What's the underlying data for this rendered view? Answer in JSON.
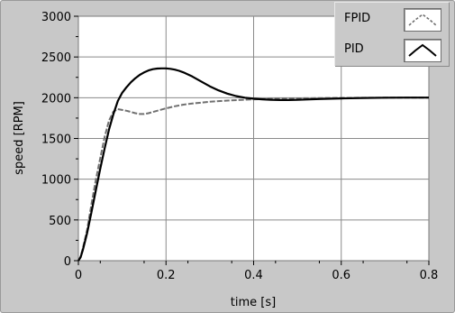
{
  "chart_data": {
    "type": "line",
    "xlabel": "time [s]",
    "ylabel": "speed [RPM]",
    "xlim": [
      0,
      0.8
    ],
    "ylim": [
      0,
      3000
    ],
    "xticks": [
      "0",
      "0.2",
      "0.4",
      "0.6",
      "0.8"
    ],
    "yticks": [
      "0",
      "500",
      "1000",
      "1500",
      "2000",
      "2500",
      "3000"
    ],
    "grid": true,
    "legend_position": "top-right",
    "series": [
      {
        "name": "FPID",
        "color": "#707070",
        "line_style": "dashed",
        "x": [
          0,
          0.005,
          0.01,
          0.02,
          0.03,
          0.04,
          0.05,
          0.06,
          0.07,
          0.08,
          0.09,
          0.1,
          0.11,
          0.12,
          0.13,
          0.14,
          0.15,
          0.16,
          0.18,
          0.2,
          0.22,
          0.24,
          0.26,
          0.28,
          0.3,
          0.32,
          0.35,
          0.4,
          0.45,
          0.5,
          0.6,
          0.7,
          0.8
        ],
        "y": [
          0,
          50,
          150,
          380,
          700,
          1000,
          1260,
          1520,
          1720,
          1830,
          1860,
          1850,
          1840,
          1825,
          1810,
          1800,
          1800,
          1810,
          1840,
          1870,
          1895,
          1915,
          1930,
          1940,
          1950,
          1958,
          1968,
          1980,
          1988,
          1993,
          1998,
          2000,
          2000
        ]
      },
      {
        "name": "PID",
        "color": "#000000",
        "line_style": "solid",
        "x": [
          0,
          0.005,
          0.01,
          0.02,
          0.03,
          0.04,
          0.05,
          0.06,
          0.07,
          0.08,
          0.09,
          0.1,
          0.11,
          0.12,
          0.13,
          0.14,
          0.15,
          0.16,
          0.17,
          0.18,
          0.19,
          0.2,
          0.21,
          0.22,
          0.23,
          0.24,
          0.26,
          0.28,
          0.3,
          0.32,
          0.34,
          0.36,
          0.38,
          0.4,
          0.42,
          0.44,
          0.46,
          0.48,
          0.5,
          0.52,
          0.55,
          0.6,
          0.65,
          0.7,
          0.75,
          0.8
        ],
        "y": [
          0,
          40,
          130,
          340,
          600,
          870,
          1130,
          1380,
          1610,
          1800,
          1960,
          2060,
          2130,
          2190,
          2240,
          2280,
          2310,
          2335,
          2350,
          2358,
          2360,
          2360,
          2355,
          2345,
          2330,
          2310,
          2260,
          2200,
          2140,
          2090,
          2050,
          2020,
          2000,
          1988,
          1980,
          1975,
          1972,
          1972,
          1974,
          1978,
          1984,
          1992,
          1997,
          2000,
          2001,
          2001
        ]
      }
    ]
  }
}
